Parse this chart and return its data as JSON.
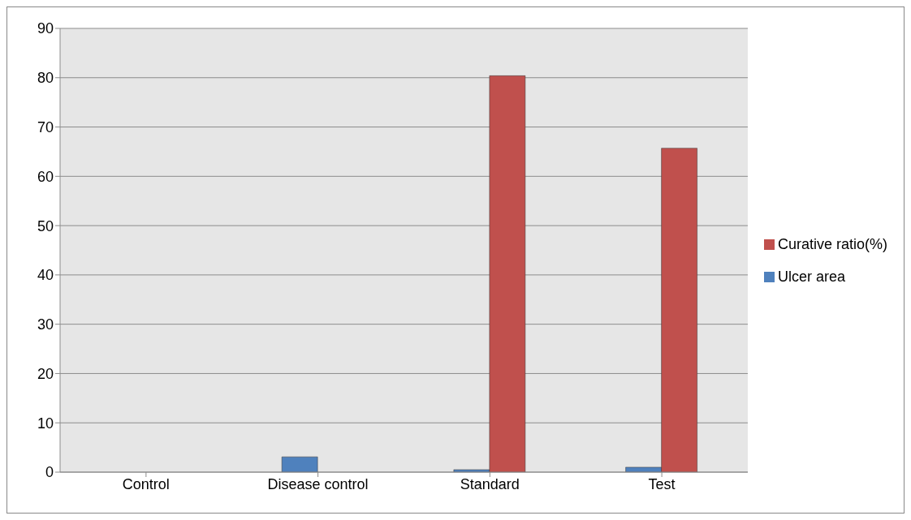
{
  "chart_data": {
    "type": "bar",
    "categories": [
      "Control",
      "Disease control",
      "Standard",
      "Test"
    ],
    "series": [
      {
        "name": "Ulcer area",
        "color": "#4f81bd",
        "values": [
          0,
          3.1,
          0.5,
          1.0
        ]
      },
      {
        "name": "Curative ratio(%)",
        "color": "#c0504d",
        "values": [
          0,
          0,
          80.4,
          65.7
        ]
      }
    ],
    "ylim": [
      0,
      90
    ],
    "yticks": [
      0,
      10,
      20,
      30,
      40,
      50,
      60,
      70,
      80,
      90
    ],
    "grid": "y",
    "legend": "right"
  }
}
